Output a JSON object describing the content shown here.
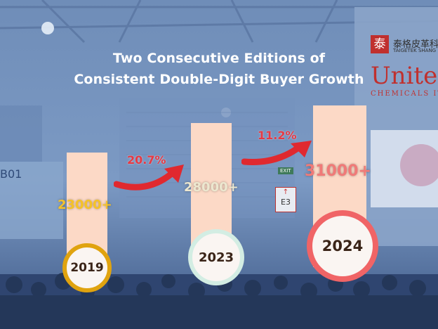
{
  "title_lines": [
    "Two Consecutive Editions of",
    "Consistent Double-Digit Buyer Growth"
  ],
  "background_signage": {
    "booth": "B01",
    "exit": "EXIT",
    "hall": "E3",
    "brand_cn": "泰格皮革科",
    "brand_en": "TAIGETEK SHANG",
    "brand_logo_char": "泰",
    "brand_big": "Unite",
    "brand_small": "CHEMICALS ITA"
  },
  "chart_data": {
    "type": "bar",
    "categories": [
      "2019",
      "2023",
      "2024"
    ],
    "values": [
      23000,
      28000,
      31000
    ],
    "value_labels": [
      "23000+",
      "28000+",
      "31000+"
    ],
    "growth_labels": [
      "20.7%",
      "11.2%"
    ],
    "title": "",
    "xlabel": "",
    "ylabel": "",
    "ylim": [
      0,
      31000
    ],
    "grid": false,
    "colors": {
      "bar": "#fcd9c6",
      "value_2019": "#f5c228",
      "value_2023": "#ece7cf",
      "value_2024": "#f07a78",
      "ring_2019": "#e0a30f",
      "ring_2023": "#d3ede3",
      "ring_2024": "#f06466",
      "growth": "#e63a44"
    }
  }
}
